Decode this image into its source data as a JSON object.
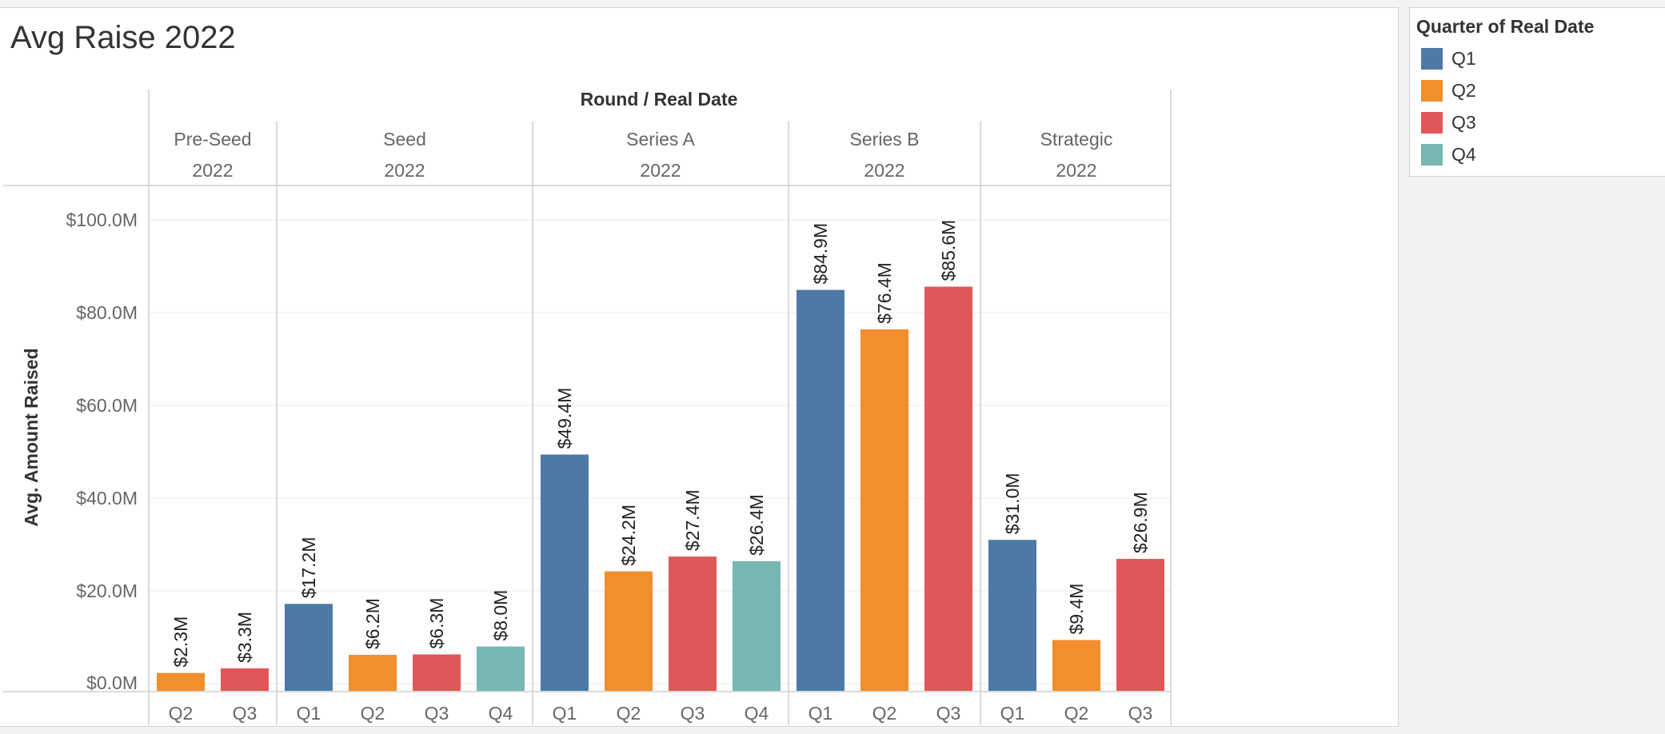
{
  "legend": {
    "title": "Quarter of Real Date",
    "items": [
      {
        "label": "Q1",
        "color": "#4e79a7"
      },
      {
        "label": "Q2",
        "color": "#f28e2b"
      },
      {
        "label": "Q3",
        "color": "#e15759"
      },
      {
        "label": "Q4",
        "color": "#76b7b2"
      }
    ]
  },
  "chart_data": {
    "type": "bar",
    "title": "Avg Raise 2022",
    "column_header": "Round / Real Date",
    "ylabel": "Avg. Amount Raised",
    "ylim": [
      0,
      100
    ],
    "yticks": [
      0,
      20,
      40,
      60,
      80,
      100
    ],
    "ytick_labels": [
      "$0.0M",
      "$20.0M",
      "$40.0M",
      "$60.0M",
      "$80.0M",
      "$100.0M"
    ],
    "grid": true,
    "legend_position": "right",
    "groups": [
      {
        "round": "Pre-Seed",
        "year": "2022",
        "bars": [
          {
            "quarter": "Q2",
            "value": 2.3,
            "label": "$2.3M"
          },
          {
            "quarter": "Q3",
            "value": 3.3,
            "label": "$3.3M"
          }
        ]
      },
      {
        "round": "Seed",
        "year": "2022",
        "bars": [
          {
            "quarter": "Q1",
            "value": 17.2,
            "label": "$17.2M"
          },
          {
            "quarter": "Q2",
            "value": 6.2,
            "label": "$6.2M"
          },
          {
            "quarter": "Q3",
            "value": 6.3,
            "label": "$6.3M"
          },
          {
            "quarter": "Q4",
            "value": 8.0,
            "label": "$8.0M"
          }
        ]
      },
      {
        "round": "Series A",
        "year": "2022",
        "bars": [
          {
            "quarter": "Q1",
            "value": 49.4,
            "label": "$49.4M"
          },
          {
            "quarter": "Q2",
            "value": 24.2,
            "label": "$24.2M"
          },
          {
            "quarter": "Q3",
            "value": 27.4,
            "label": "$27.4M"
          },
          {
            "quarter": "Q4",
            "value": 26.4,
            "label": "$26.4M"
          }
        ]
      },
      {
        "round": "Series B",
        "year": "2022",
        "bars": [
          {
            "quarter": "Q1",
            "value": 84.9,
            "label": "$84.9M"
          },
          {
            "quarter": "Q2",
            "value": 76.4,
            "label": "$76.4M"
          },
          {
            "quarter": "Q3",
            "value": 85.6,
            "label": "$85.6M"
          }
        ]
      },
      {
        "round": "Strategic",
        "year": "2022",
        "bars": [
          {
            "quarter": "Q1",
            "value": 31.0,
            "label": "$31.0M"
          },
          {
            "quarter": "Q2",
            "value": 9.4,
            "label": "$9.4M"
          },
          {
            "quarter": "Q3",
            "value": 26.9,
            "label": "$26.9M"
          }
        ]
      }
    ]
  }
}
